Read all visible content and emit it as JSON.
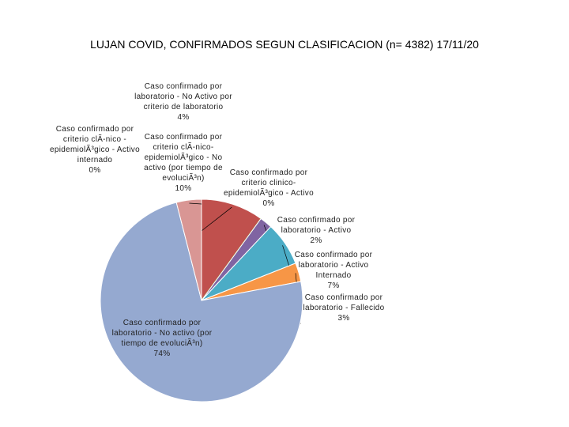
{
  "chart_data": {
    "type": "pie",
    "title": "LUJAN COVID, CONFIRMADOS SEGUN CLASIFICACION (n= 4382) 17/11/20",
    "categories": [
      "Caso confirmado por criterio clÃ-nico - epidemiolÃ³gico - Activo internado",
      "Caso confirmado por criterio clÃ-nico-epidemiolÃ³gico - No activo (por tiempo de evoluciÃ³n)",
      "Caso confirmado por criterio clinico-epidemiolÃ³gico - Activo",
      "Caso confirmado por laboratorio - Activo",
      "Caso confirmado por laboratorio - Activo Internado",
      "Caso confirmado por laboratorio - Fallecido",
      "Caso confirmado por laboratorio - No activo (por tiempo de evoluciÃ³n)",
      "Caso confirmado por laboratorio - No Activo por criterio de laboratorio"
    ],
    "values": [
      0,
      10,
      0,
      2,
      7,
      3,
      74,
      4
    ],
    "value_labels": [
      "0%",
      "10%",
      "0%",
      "2%",
      "7%",
      "3%",
      "74%",
      "4%"
    ],
    "colors": [
      "#4f81bd",
      "#c0504d",
      "#9bbb59",
      "#8064a2",
      "#4bacc6",
      "#f79646",
      "#95a9d0",
      "#d99694"
    ]
  }
}
